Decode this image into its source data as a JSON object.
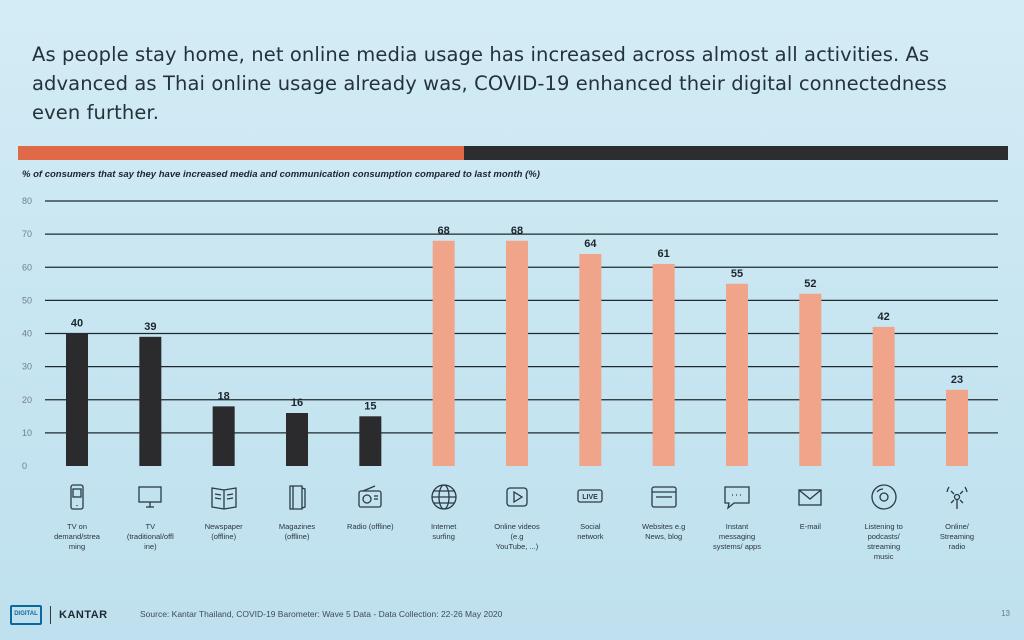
{
  "headline": "As people stay home, net online media usage has increased across almost all activities. As advanced as Thai online usage already was, COVID-19 enhanced their digital connectedness even further.",
  "chart_data": {
    "type": "bar",
    "title": "% of consumers that say they have  increased media and communication consumption compared to last month (%)",
    "ylim": [
      0,
      80
    ],
    "yticks": [
      0,
      10,
      20,
      30,
      40,
      50,
      60,
      70,
      80
    ],
    "grid": true,
    "categories": [
      "TV on\ndemand/strea\nming",
      "TV\n(traditional/offl\nine)",
      "Newspaper\n(offline)",
      "Magazines\n(offline)",
      "Radio (offline)",
      "Internet\nsurfing",
      "Online videos\n(e.g\nYouTube, ...)",
      "Social\nnetwork",
      "Websites e.g\nNews, blog",
      "Instant\nmessaging\nsystems/ apps",
      "E-mail",
      "Listening to\npodcasts/\nstreaming\nmusic",
      "Online/\nStreaming\nradio"
    ],
    "values": [
      40,
      39,
      18,
      16,
      15,
      68,
      68,
      64,
      61,
      55,
      52,
      42,
      23
    ],
    "bar_colors": [
      "#2b2b2e",
      "#2b2b2e",
      "#2b2b2e",
      "#2b2b2e",
      "#2b2b2e",
      "#f0a48a",
      "#f0a48a",
      "#f0a48a",
      "#f0a48a",
      "#f0a48a",
      "#f0a48a",
      "#f0a48a",
      "#f0a48a"
    ],
    "icons": [
      "mobile-tv-icon",
      "tv-icon",
      "newspaper-icon",
      "magazine-icon",
      "radio-icon",
      "globe-icon",
      "play-video-icon",
      "live-badge-icon",
      "browser-window-icon",
      "chat-bubble-icon",
      "envelope-icon",
      "disc-icon",
      "broadcast-icon"
    ]
  },
  "header_band": {
    "left_color": "#e06a48",
    "right_color": "#2d2c2e"
  },
  "footer": {
    "logo_text": "DIGITAL",
    "brand": "KANTAR",
    "source": "Source: Kantar Thailand, COVID-19 Barometer: Wave 5 Data - Data Collection: 22-26 May 2020",
    "page_number": "13"
  }
}
